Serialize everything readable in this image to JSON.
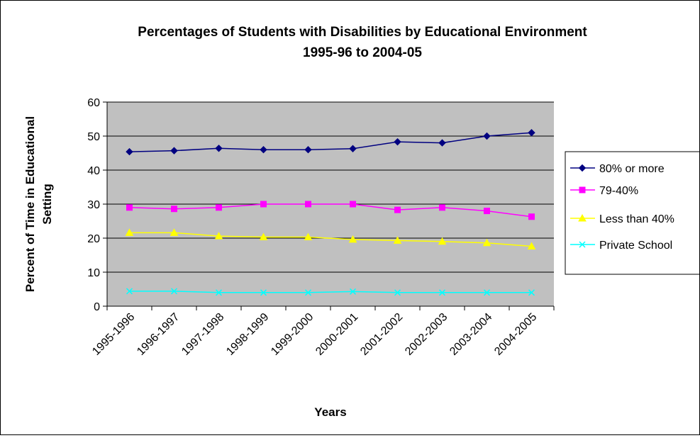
{
  "chart_data": {
    "type": "line",
    "title": "Percentages of Students with Disabilities by Educational Environment",
    "subtitle": "1995-96 to 2004-05",
    "xlabel": "Years",
    "ylabel_line1": "Percent of Time in Educational",
    "ylabel_line2": "Setting",
    "ylim": [
      0,
      60
    ],
    "ytick_step": 10,
    "yticks": [
      "0",
      "10",
      "20",
      "30",
      "40",
      "50",
      "60"
    ],
    "grid": true,
    "plot_background": "#c0c0c0",
    "legend_position": "right",
    "categories": [
      "1995-1996",
      "1996-1997",
      "1997-1998",
      "1998-1999",
      "1999-2000",
      "2000-2001",
      "2001-2002",
      "2002-2003",
      "2003-2004",
      "2004-2005"
    ],
    "series": [
      {
        "name": "80% or more",
        "color": "#000080",
        "marker": "diamond",
        "values": [
          45.4,
          45.7,
          46.4,
          46.0,
          46.0,
          46.3,
          48.3,
          48.0,
          50.0,
          51.0
        ]
      },
      {
        "name": "79-40%",
        "color": "#ff00ff",
        "marker": "square",
        "values": [
          29.0,
          28.6,
          29.0,
          30.0,
          30.0,
          30.0,
          28.3,
          29.0,
          28.0,
          26.3
        ]
      },
      {
        "name": "Less than 40%",
        "color": "#ffff00",
        "marker": "triangle",
        "values": [
          21.6,
          21.6,
          20.6,
          20.3,
          20.3,
          19.6,
          19.3,
          19.0,
          18.6,
          17.6
        ]
      },
      {
        "name": "Private School",
        "color": "#00ffff",
        "marker": "x",
        "values": [
          4.4,
          4.4,
          4.0,
          4.0,
          4.0,
          4.3,
          4.0,
          4.0,
          4.0,
          4.0
        ]
      }
    ]
  }
}
